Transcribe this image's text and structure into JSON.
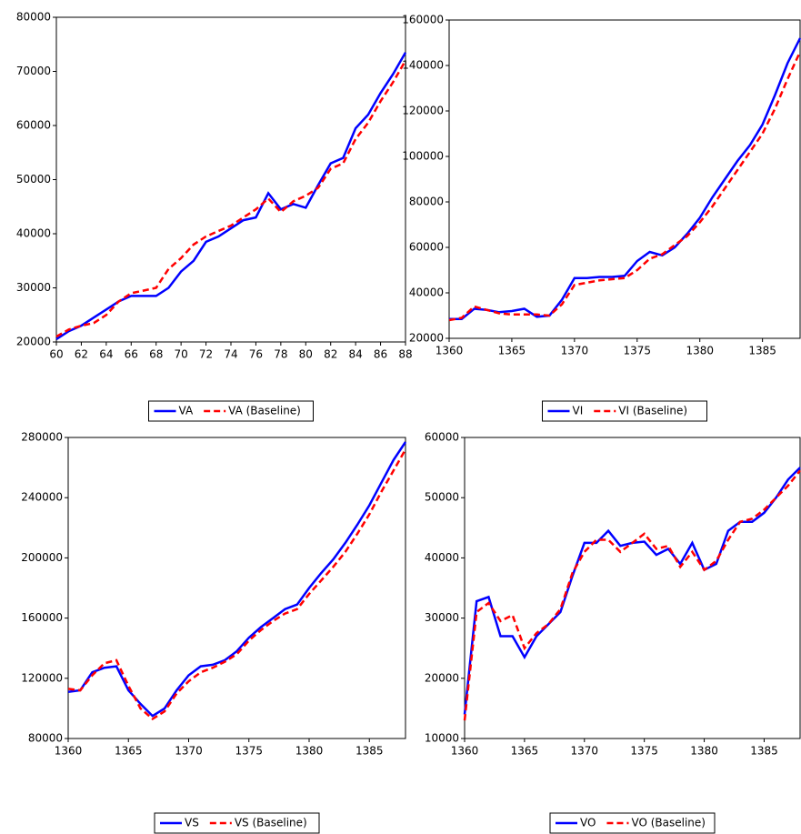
{
  "chart_data": [
    {
      "type": "line",
      "xlim": [
        60,
        88
      ],
      "xticks": [
        60,
        62,
        64,
        66,
        68,
        70,
        72,
        74,
        76,
        78,
        80,
        82,
        84,
        86,
        88
      ],
      "ylim": [
        20000,
        80000
      ],
      "yticks": [
        20000,
        30000,
        40000,
        50000,
        60000,
        70000,
        80000
      ],
      "x": [
        60,
        61,
        62,
        63,
        64,
        65,
        66,
        67,
        68,
        69,
        70,
        71,
        72,
        73,
        74,
        75,
        76,
        77,
        78,
        79,
        80,
        81,
        82,
        83,
        84,
        85,
        86,
        87,
        88
      ],
      "series": [
        {
          "name": "VA",
          "color": "#0000ff",
          "line_style": "solid",
          "values": [
            20500,
            22000,
            23000,
            24500,
            26000,
            27500,
            28500,
            28500,
            28500,
            30000,
            33000,
            35000,
            38500,
            39500,
            41000,
            42500,
            43000,
            47500,
            44500,
            45500,
            44800,
            49000,
            53000,
            54000,
            59500,
            62000,
            66000,
            69500,
            73500
          ]
        },
        {
          "name": "VA (Baseline)",
          "color": "#ff0000",
          "line_style": "dashed",
          "values": [
            21000,
            22300,
            23000,
            23500,
            25000,
            27500,
            29000,
            29500,
            30000,
            33500,
            35500,
            38000,
            39500,
            40500,
            41500,
            43000,
            44500,
            46500,
            44000,
            46000,
            47000,
            48500,
            52000,
            53000,
            57500,
            60500,
            64500,
            68000,
            72000
          ]
        }
      ]
    },
    {
      "type": "line",
      "xlim": [
        1360,
        1388
      ],
      "xticks": [
        1360,
        1365,
        1370,
        1375,
        1380,
        1385
      ],
      "ylim": [
        20000,
        160000
      ],
      "yticks": [
        20000,
        40000,
        60000,
        80000,
        100000,
        120000,
        140000,
        160000
      ],
      "x": [
        1360,
        1361,
        1362,
        1363,
        1364,
        1365,
        1366,
        1367,
        1368,
        1369,
        1370,
        1371,
        1372,
        1373,
        1374,
        1375,
        1376,
        1377,
        1378,
        1379,
        1380,
        1381,
        1382,
        1383,
        1384,
        1385,
        1386,
        1387,
        1388
      ],
      "series": [
        {
          "name": "VI",
          "color": "#0000ff",
          "line_style": "solid",
          "values": [
            28500,
            28500,
            33000,
            32500,
            31500,
            32000,
            33000,
            29500,
            30000,
            37000,
            46500,
            46500,
            47000,
            47000,
            47500,
            54000,
            58000,
            56500,
            60000,
            66000,
            73000,
            82000,
            90000,
            98000,
            105000,
            114000,
            127000,
            141000,
            152000
          ]
        },
        {
          "name": "VI (Baseline)",
          "color": "#ff0000",
          "line_style": "dashed",
          "values": [
            28000,
            29000,
            34000,
            32500,
            31000,
            30500,
            30500,
            30500,
            30000,
            35000,
            43500,
            44500,
            45500,
            46000,
            46500,
            50000,
            55000,
            57000,
            61000,
            65000,
            71000,
            78000,
            86000,
            94000,
            102000,
            110000,
            121000,
            134000,
            146000
          ]
        }
      ]
    },
    {
      "type": "line",
      "xlim": [
        1360,
        1388
      ],
      "xticks": [
        1360,
        1365,
        1370,
        1375,
        1380,
        1385
      ],
      "ylim": [
        80000,
        280000
      ],
      "yticks": [
        80000,
        120000,
        160000,
        200000,
        240000,
        280000
      ],
      "x": [
        1360,
        1361,
        1362,
        1363,
        1364,
        1365,
        1366,
        1367,
        1368,
        1369,
        1370,
        1371,
        1372,
        1373,
        1374,
        1375,
        1376,
        1377,
        1378,
        1379,
        1380,
        1381,
        1382,
        1383,
        1384,
        1385,
        1386,
        1387,
        1388
      ],
      "series": [
        {
          "name": "VS",
          "color": "#0000ff",
          "line_style": "solid",
          "values": [
            111000,
            112000,
            124000,
            127000,
            128000,
            112000,
            103000,
            95000,
            100000,
            112000,
            122000,
            128000,
            129000,
            132000,
            138000,
            147000,
            154000,
            160000,
            166000,
            169000,
            180000,
            190000,
            199000,
            210000,
            222000,
            235000,
            250000,
            265000,
            277000
          ]
        },
        {
          "name": "VS (Baseline)",
          "color": "#ff0000",
          "line_style": "dashed",
          "values": [
            113000,
            112000,
            122000,
            130000,
            132000,
            115000,
            100000,
            93000,
            98000,
            110000,
            118000,
            124000,
            127000,
            131000,
            136000,
            145000,
            152000,
            158000,
            163000,
            166000,
            176000,
            185000,
            194000,
            204000,
            216000,
            229000,
            244000,
            258000,
            272000
          ]
        }
      ]
    },
    {
      "type": "line",
      "xlim": [
        1360,
        1388
      ],
      "xticks": [
        1360,
        1365,
        1370,
        1375,
        1380,
        1385
      ],
      "ylim": [
        10000,
        60000
      ],
      "yticks": [
        10000,
        20000,
        30000,
        40000,
        50000,
        60000
      ],
      "x": [
        1360,
        1361,
        1362,
        1363,
        1364,
        1365,
        1366,
        1367,
        1368,
        1369,
        1370,
        1371,
        1372,
        1373,
        1374,
        1375,
        1376,
        1377,
        1378,
        1379,
        1380,
        1381,
        1382,
        1383,
        1384,
        1385,
        1386,
        1387,
        1388
      ],
      "series": [
        {
          "name": "VO",
          "color": "#0000ff",
          "line_style": "solid",
          "values": [
            14000,
            32800,
            33500,
            27000,
            27000,
            23500,
            27000,
            29000,
            31000,
            37000,
            42500,
            42500,
            44500,
            42000,
            42500,
            42700,
            40500,
            41500,
            39000,
            42500,
            38000,
            39000,
            44500,
            46000,
            46000,
            47500,
            50000,
            53000,
            55000
          ]
        },
        {
          "name": "VO (Baseline)",
          "color": "#ff0000",
          "line_style": "dashed",
          "values": [
            13000,
            31000,
            32500,
            29500,
            30500,
            25000,
            27500,
            29000,
            31500,
            37500,
            41000,
            43000,
            43000,
            41000,
            42500,
            44000,
            41500,
            42000,
            38500,
            41000,
            38000,
            39500,
            43000,
            46000,
            46500,
            48000,
            50000,
            52000,
            54500
          ]
        }
      ]
    }
  ]
}
